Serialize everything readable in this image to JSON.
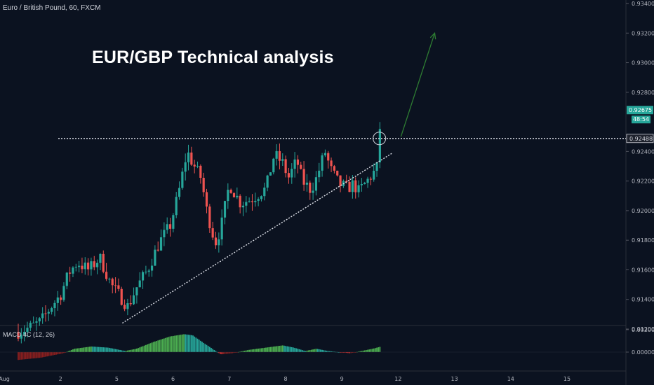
{
  "header": {
    "symbol": "Euro / British Pound, 60, FXCM",
    "headline": "EUR/GBP Technical analysis"
  },
  "indicator": {
    "label": "MACD 4C (12, 26)"
  },
  "colors": {
    "background": "#0b1220",
    "up": "#26a69a",
    "down": "#ef5350",
    "trendline": "#e0e3eb",
    "arrow": "#2e7d32",
    "price_badge": "#26a69a",
    "macd_up": "#26a69a",
    "macd_strong": "#4caf50",
    "macd_down": "#d32f2f"
  },
  "chart_data": {
    "type": "candlestick",
    "title": "EUR/GBP Technical analysis",
    "symbol": "Euro / British Pound, 60, FXCM",
    "x_tick_labels": [
      "Aug",
      "2",
      "5",
      "6",
      "7",
      "8",
      "9",
      "12",
      "13",
      "14",
      "15"
    ],
    "x_tick_days": [
      0,
      1,
      2,
      3,
      4,
      5,
      6,
      7,
      8,
      9,
      10
    ],
    "y_tick_labels": [
      "0.93400",
      "0.93200",
      "0.93000",
      "0.92800",
      "0.92400",
      "0.92200",
      "0.92000",
      "0.91800",
      "0.91600",
      "0.91400",
      "0.91200"
    ],
    "ylim": [
      0.912,
      0.934
    ],
    "xlim_days": [
      0,
      10.4
    ],
    "price_series": {
      "day": [
        0.0,
        0.2,
        0.4,
        0.6,
        0.75,
        0.9,
        1.05,
        1.25,
        1.45,
        1.65,
        1.85,
        1.95,
        2.1,
        2.3,
        2.5,
        2.7,
        2.85,
        3.0,
        3.1,
        3.25,
        3.35,
        3.5,
        3.6,
        3.75,
        3.95,
        4.15,
        4.4,
        4.55,
        4.7,
        4.8,
        4.95,
        5.05,
        5.2,
        5.3,
        5.45,
        5.55,
        5.7,
        5.85,
        5.95,
        6.05,
        6.2,
        6.3,
        6.37,
        6.45
      ],
      "price": [
        0.9118,
        0.9121,
        0.9125,
        0.9136,
        0.9143,
        0.9158,
        0.9165,
        0.916,
        0.9168,
        0.915,
        0.914,
        0.9135,
        0.9148,
        0.916,
        0.9178,
        0.919,
        0.9212,
        0.924,
        0.9232,
        0.9222,
        0.92,
        0.9178,
        0.9188,
        0.9218,
        0.9205,
        0.9208,
        0.9215,
        0.9238,
        0.9232,
        0.9222,
        0.9234,
        0.922,
        0.9214,
        0.9222,
        0.924,
        0.9228,
        0.9218,
        0.9215,
        0.9218,
        0.9213,
        0.922,
        0.9225,
        0.9228,
        0.9268
      ]
    },
    "annotations": {
      "resistance_level": 0.92488,
      "resistance_label": "0.92488",
      "support_line": [
        {
          "day": 1.85,
          "price": 0.9124
        },
        {
          "day": 6.65,
          "price": 0.9239
        }
      ],
      "projection_arrow": [
        {
          "day": 6.8,
          "price": 0.925
        },
        {
          "day": 7.4,
          "price": 0.932
        }
      ],
      "breakout_circle": {
        "day": 6.38,
        "price": 0.92488
      }
    },
    "last_price": "0.92675",
    "countdown": "48:54",
    "macd": {
      "label": "MACD 4C (12, 26)",
      "y_tick_labels": [
        "0.00200",
        "0.00000"
      ],
      "ylim": [
        -0.0008,
        0.0021
      ],
      "day": [
        0.0,
        0.4,
        0.8,
        1.0,
        1.3,
        1.6,
        1.9,
        2.1,
        2.4,
        2.7,
        2.95,
        3.1,
        3.3,
        3.6,
        3.8,
        4.1,
        4.4,
        4.7,
        4.9,
        5.1,
        5.3,
        5.5,
        5.7,
        5.9,
        6.1,
        6.3,
        6.45
      ],
      "value": [
        -0.0007,
        -0.0005,
        -0.0001,
        0.0003,
        0.0005,
        0.0004,
        0.0001,
        0.0003,
        0.0009,
        0.0014,
        0.0016,
        0.0015,
        0.0008,
        -0.0002,
        -0.0001,
        0.0002,
        0.0004,
        0.0006,
        0.0004,
        0.0001,
        0.0003,
        0.0001,
        0.0,
        -0.0001,
        0.0001,
        0.0003,
        0.0005
      ]
    }
  }
}
